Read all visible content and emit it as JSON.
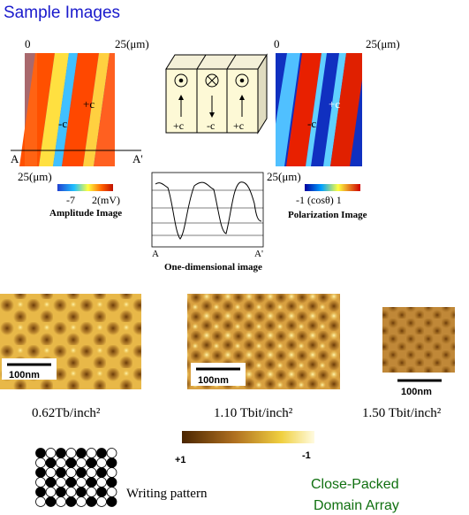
{
  "title": "Sample Images",
  "amplitude": {
    "top_left": "0",
    "top_right": "25(μm)",
    "plus": "+c",
    "minus": "-c",
    "a": "A",
    "a_prime": "A'",
    "bottom": "25(μm)",
    "scale_min": "-7",
    "scale_max": "2(mV)",
    "caption": "Amplitude Image"
  },
  "cube": {
    "labels": [
      "+c",
      "-c",
      "+c"
    ]
  },
  "polarization": {
    "top_left": "0",
    "top_right": "25(μm)",
    "plus": "+c",
    "minus": "-c",
    "bottom": "25(μm)",
    "scale": "-1 (cosθ) 1",
    "caption": "Polarization Image"
  },
  "profile": {
    "a": "A",
    "a_prime": "A'",
    "caption": "One-dimensional image"
  },
  "samples": [
    {
      "scale_bar": "100nm",
      "density": "0.62Tb/inch²"
    },
    {
      "scale_bar": "100nm",
      "density": "1.10 Tbit/inch²"
    },
    {
      "scale_bar": "100nm",
      "density": "1.50 Tbit/inch²"
    }
  ],
  "colorbar": {
    "min": "+1",
    "max": "-1"
  },
  "writing_pattern": "Writing pattern",
  "array_label": [
    "Close-Packed",
    "Domain Array"
  ]
}
